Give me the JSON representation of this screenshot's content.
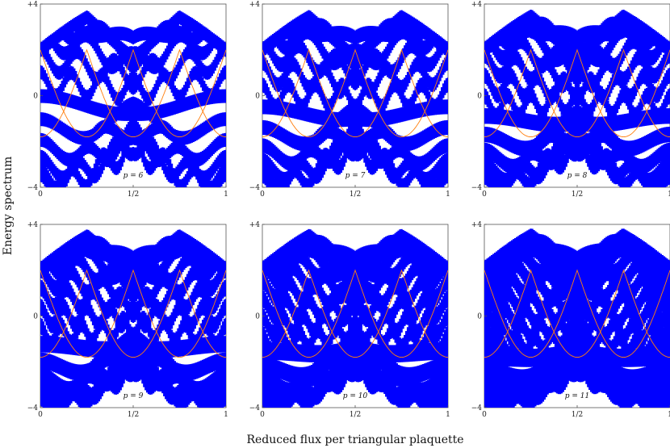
{
  "xlabel": "Reduced flux per triangular plaquette",
  "ylabel": "Energy spectrum",
  "colors": {
    "bands": "#0000ff",
    "edge": "#ff7f0e"
  },
  "chart_data": {
    "type": "scatter",
    "grid": false,
    "shared_axes": {
      "xlim": [
        0,
        1
      ],
      "ylim": [
        -4,
        4
      ],
      "xticks": [
        "0",
        "1/2",
        "1"
      ],
      "yticks": [
        "+4",
        "0",
        "−4"
      ]
    },
    "panels": [
      {
        "label": "p = 6",
        "p": 6
      },
      {
        "label": "p = 7",
        "p": 7
      },
      {
        "label": "p = 8",
        "p": 8
      },
      {
        "label": "p = 9",
        "p": 9
      },
      {
        "label": "p = 10",
        "p": 10
      },
      {
        "label": "p = 11",
        "p": 11
      }
    ]
  }
}
